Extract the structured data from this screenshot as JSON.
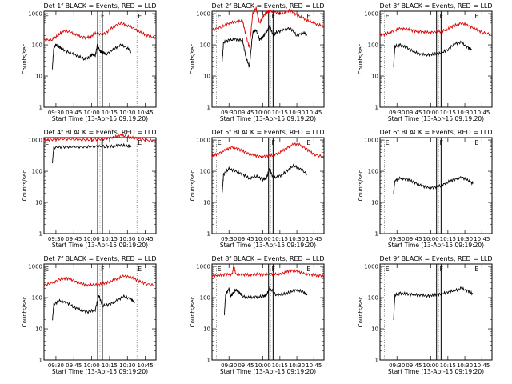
{
  "chart_data": [
    {
      "type": "line",
      "title": "Det 1f BLACK = Events, RED = LLD",
      "xlabel": "Start Time (13-Apr-15 09:19:20)",
      "ylabel": "Counts/sec",
      "ylog": true,
      "ylim": [
        1,
        1200
      ],
      "xlim": [
        9.333,
        10.9
      ],
      "xticks": [
        "09:30",
        "09:45",
        "10:00",
        "10:15",
        "10:30",
        "10:45"
      ],
      "markers": [
        {
          "label": "E",
          "time": "09:19"
        },
        {
          "label": "F",
          "time": "10:07"
        },
        {
          "label": "E",
          "time": "10:38"
        }
      ],
      "solid_lines": [
        "10:05",
        "10:09"
      ],
      "series": [
        {
          "color": "#dd0000",
          "x": [
            9.33,
            9.45,
            9.53,
            9.6,
            9.7,
            9.8,
            9.9,
            9.98,
            10.05,
            10.12,
            10.2,
            10.3,
            10.4,
            10.5,
            10.6,
            10.7,
            10.8,
            10.9
          ],
          "values": [
            140,
            150,
            200,
            280,
            260,
            200,
            170,
            180,
            230,
            220,
            240,
            380,
            500,
            420,
            330,
            240,
            190,
            160
          ]
        },
        {
          "color": "#000000",
          "x": [
            9.45,
            9.47,
            9.5,
            9.55,
            9.6,
            9.7,
            9.8,
            9.9,
            9.97,
            10.0,
            10.05,
            10.08,
            10.12,
            10.15,
            10.2,
            10.3,
            10.4,
            10.5,
            10.55
          ],
          "values": [
            18,
            80,
            100,
            85,
            70,
            55,
            45,
            35,
            40,
            50,
            45,
            100,
            60,
            60,
            50,
            70,
            100,
            80,
            60
          ]
        }
      ]
    },
    {
      "type": "line",
      "title": "Det 2f BLACK = Events, RED = LLD",
      "xlabel": "Start Time (13-Apr-15 09:19:20)",
      "ylabel": "Counts/sec",
      "ylog": true,
      "ylim": [
        1,
        1200
      ],
      "xlim": [
        9.25,
        10.9
      ],
      "xticks": [
        "09:30",
        "09:45",
        "10:00",
        "10:15",
        "10:30",
        "10:45"
      ],
      "markers": [
        {
          "label": "E",
          "time": "09:19"
        },
        {
          "label": "F",
          "time": "10:07"
        },
        {
          "label": "E",
          "time": "10:38"
        }
      ],
      "solid_lines": [
        "10:05",
        "10:09"
      ],
      "series": [
        {
          "color": "#dd0000",
          "x": [
            9.25,
            9.4,
            9.5,
            9.6,
            9.7,
            9.75,
            9.8,
            9.85,
            9.9,
            9.95,
            10.0,
            10.05,
            10.1,
            10.2,
            10.3,
            10.4,
            10.5,
            10.6,
            10.7,
            10.8,
            10.9
          ],
          "values": [
            300,
            380,
            500,
            550,
            600,
            200,
            80,
            1000,
            1500,
            500,
            800,
            1100,
            1200,
            1100,
            1000,
            1300,
            900,
            700,
            550,
            450,
            400
          ]
        },
        {
          "color": "#000000",
          "x": [
            9.4,
            9.42,
            9.5,
            9.6,
            9.7,
            9.75,
            9.8,
            9.85,
            9.9,
            9.95,
            10.0,
            10.05,
            10.1,
            10.15,
            10.2,
            10.3,
            10.4,
            10.5,
            10.6,
            10.65
          ],
          "values": [
            30,
            120,
            140,
            150,
            140,
            40,
            20,
            250,
            300,
            150,
            180,
            250,
            400,
            200,
            250,
            300,
            350,
            200,
            250,
            200
          ]
        }
      ]
    },
    {
      "type": "line",
      "title": "Det 3f BLACK = Events, RED = LLD",
      "xlabel": "Start Time (13-Apr-15 09:19:20)",
      "ylabel": "Counts/sec",
      "ylog": true,
      "ylim": [
        1,
        1200
      ],
      "xlim": [
        9.25,
        10.9
      ],
      "xticks": [
        "09:30",
        "09:45",
        "10:00",
        "10:15",
        "10:30",
        "10:45"
      ],
      "markers": [
        {
          "label": "E",
          "time": "09:19"
        },
        {
          "label": "F",
          "time": "10:07"
        },
        {
          "label": "E",
          "time": "10:38"
        }
      ],
      "solid_lines": [
        "10:05",
        "10:09"
      ],
      "series": [
        {
          "color": "#dd0000",
          "x": [
            9.25,
            9.35,
            9.45,
            9.55,
            9.65,
            9.75,
            9.85,
            9.95,
            10.05,
            10.15,
            10.25,
            10.35,
            10.45,
            10.55,
            10.65,
            10.75,
            10.9
          ],
          "values": [
            200,
            230,
            280,
            340,
            320,
            280,
            260,
            250,
            260,
            270,
            320,
            420,
            500,
            420,
            330,
            250,
            210
          ]
        },
        {
          "color": "#000000",
          "x": [
            9.45,
            9.47,
            9.55,
            9.65,
            9.75,
            9.85,
            9.95,
            10.05,
            10.15,
            10.25,
            10.35,
            10.45,
            10.55,
            10.6
          ],
          "values": [
            20,
            90,
            100,
            80,
            60,
            50,
            48,
            50,
            55,
            70,
            110,
            120,
            80,
            70
          ]
        }
      ]
    },
    {
      "type": "line",
      "title": "Det 4f BLACK = Events, RED = LLD",
      "xlabel": "Start Time (13-Apr-15 09:19:20)",
      "ylabel": "Counts/sec",
      "ylog": true,
      "ylim": [
        1,
        1200
      ],
      "xlim": [
        9.333,
        10.9
      ],
      "xticks": [
        "09:30",
        "09:45",
        "10:00",
        "10:15",
        "10:30",
        "10:45"
      ],
      "markers": [
        {
          "label": "E",
          "time": "09:19"
        },
        {
          "label": "F",
          "time": "10:07"
        },
        {
          "label": "E",
          "time": "10:38"
        }
      ],
      "solid_lines": [
        "10:05",
        "10:09"
      ],
      "series": [
        {
          "color": "#dd0000",
          "x": [
            9.33,
            9.45,
            9.6,
            9.75,
            9.9,
            10.05,
            10.2,
            10.3,
            10.4,
            10.5,
            10.6,
            10.75,
            10.9
          ],
          "values": [
            1000,
            1050,
            1100,
            1050,
            1000,
            1050,
            1100,
            1200,
            1450,
            1300,
            1150,
            1000,
            950
          ]
        },
        {
          "color": "#000000",
          "x": [
            9.45,
            9.47,
            9.6,
            9.75,
            9.9,
            10.05,
            10.2,
            10.3,
            10.4,
            10.5,
            10.55
          ],
          "values": [
            180,
            580,
            600,
            610,
            600,
            620,
            620,
            630,
            700,
            650,
            600
          ]
        }
      ]
    },
    {
      "type": "line",
      "title": "Det 5f BLACK = Events, RED = LLD",
      "xlabel": "Start Time (13-Apr-15 09:19:20)",
      "ylabel": "Counts/sec",
      "ylog": true,
      "ylim": [
        1,
        1200
      ],
      "xlim": [
        9.25,
        10.9
      ],
      "xticks": [
        "09:30",
        "09:45",
        "10:00",
        "10:15",
        "10:30",
        "10:45"
      ],
      "markers": [
        {
          "label": "E",
          "time": "09:19"
        },
        {
          "label": "F",
          "time": "10:07"
        },
        {
          "label": "E",
          "time": "10:38"
        }
      ],
      "solid_lines": [
        "10:05",
        "10:09"
      ],
      "series": [
        {
          "color": "#dd0000",
          "x": [
            9.25,
            9.35,
            9.45,
            9.55,
            9.65,
            9.75,
            9.85,
            9.95,
            10.05,
            10.15,
            10.25,
            10.35,
            10.45,
            10.55,
            10.65,
            10.75,
            10.9
          ],
          "values": [
            300,
            380,
            480,
            600,
            500,
            400,
            330,
            300,
            300,
            330,
            400,
            550,
            750,
            700,
            500,
            350,
            280
          ]
        },
        {
          "color": "#000000",
          "x": [
            9.4,
            9.42,
            9.5,
            9.6,
            9.7,
            9.8,
            9.9,
            10.0,
            10.05,
            10.1,
            10.15,
            10.25,
            10.35,
            10.45,
            10.55,
            10.65
          ],
          "values": [
            20,
            80,
            120,
            100,
            80,
            60,
            70,
            55,
            60,
            120,
            60,
            70,
            100,
            150,
            120,
            80
          ]
        }
      ]
    },
    {
      "type": "line",
      "title": "Det 6f BLACK = Events, RED = LLD",
      "xlabel": "Start Time (13-Apr-15 09:19:20)",
      "ylabel": "Counts/sec",
      "ylog": true,
      "ylim": [
        1,
        1200
      ],
      "xlim": [
        9.25,
        10.9
      ],
      "xticks": [
        "09:30",
        "09:45",
        "10:00",
        "10:15",
        "10:30",
        "10:45"
      ],
      "markers": [
        {
          "label": "E",
          "time": "09:19"
        },
        {
          "label": "F",
          "time": "10:07"
        },
        {
          "label": "E",
          "time": "10:38"
        }
      ],
      "solid_lines": [
        "10:05",
        "10:09"
      ],
      "series": [
        {
          "color": "#000000",
          "x": [
            9.45,
            9.47,
            9.55,
            9.65,
            9.75,
            9.85,
            9.95,
            10.05,
            10.15,
            10.25,
            10.35,
            10.45,
            10.55,
            10.62
          ],
          "values": [
            20,
            50,
            60,
            55,
            45,
            35,
            30,
            30,
            35,
            45,
            55,
            65,
            50,
            40
          ]
        }
      ]
    },
    {
      "type": "line",
      "title": "Det 7f BLACK = Events, RED = LLD",
      "xlabel": "Start Time (13-Apr-15 09:19:20)",
      "ylabel": "Counts/sec",
      "ylog": true,
      "ylim": [
        1,
        1200
      ],
      "xlim": [
        9.333,
        10.9
      ],
      "xticks": [
        "09:30",
        "09:45",
        "10:00",
        "10:15",
        "10:30",
        "10:45"
      ],
      "markers": [
        {
          "label": "E",
          "time": "09:19"
        },
        {
          "label": "F",
          "time": "10:07"
        },
        {
          "label": "E",
          "time": "10:38"
        }
      ],
      "solid_lines": [
        "10:05",
        "10:09"
      ],
      "series": [
        {
          "color": "#dd0000",
          "x": [
            9.33,
            9.45,
            9.55,
            9.65,
            9.75,
            9.85,
            9.95,
            10.05,
            10.15,
            10.25,
            10.35,
            10.45,
            10.55,
            10.65,
            10.75,
            10.9
          ],
          "values": [
            250,
            300,
            380,
            420,
            350,
            280,
            250,
            260,
            280,
            320,
            400,
            500,
            450,
            350,
            280,
            240
          ]
        },
        {
          "color": "#000000",
          "x": [
            9.45,
            9.47,
            9.55,
            9.65,
            9.75,
            9.85,
            9.95,
            10.05,
            10.1,
            10.15,
            10.25,
            10.35,
            10.45,
            10.55,
            10.6
          ],
          "values": [
            18,
            60,
            80,
            70,
            50,
            40,
            35,
            40,
            120,
            55,
            60,
            80,
            110,
            90,
            70
          ]
        }
      ]
    },
    {
      "type": "line",
      "title": "Det 8f BLACK = Events, RED = LLD",
      "xlabel": "Start Time (13-Apr-15 09:19:20)",
      "ylabel": "Counts/sec",
      "ylog": true,
      "ylim": [
        1,
        1200
      ],
      "xlim": [
        9.25,
        10.9
      ],
      "xticks": [
        "09:30",
        "09:45",
        "10:00",
        "10:15",
        "10:30",
        "10:45"
      ],
      "markers": [
        {
          "label": "E",
          "time": "09:19"
        },
        {
          "label": "F",
          "time": "10:07"
        },
        {
          "label": "E",
          "time": "10:38"
        }
      ],
      "solid_lines": [
        "10:05",
        "10:09"
      ],
      "series": [
        {
          "color": "#dd0000",
          "x": [
            9.25,
            9.35,
            9.45,
            9.55,
            9.57,
            9.6,
            9.7,
            9.8,
            9.9,
            10.0,
            10.1,
            10.2,
            10.3,
            10.4,
            10.5,
            10.6,
            10.7,
            10.8,
            10.9
          ],
          "values": [
            500,
            520,
            550,
            560,
            1100,
            560,
            550,
            540,
            560,
            550,
            580,
            560,
            600,
            750,
            700,
            600,
            550,
            520,
            500
          ]
        },
        {
          "color": "#000000",
          "x": [
            9.43,
            9.45,
            9.5,
            9.52,
            9.55,
            9.6,
            9.65,
            9.7,
            9.8,
            9.9,
            10.0,
            10.05,
            10.1,
            10.2,
            10.3,
            10.4,
            10.5,
            10.6,
            10.65
          ],
          "values": [
            25,
            120,
            200,
            110,
            130,
            180,
            150,
            110,
            100,
            105,
            110,
            120,
            200,
            120,
            130,
            150,
            180,
            150,
            120
          ]
        }
      ]
    },
    {
      "type": "line",
      "title": "Det 9f BLACK = Events, RED = LLD",
      "xlabel": "Start Time (13-Apr-15 09:19:20)",
      "ylabel": "Counts/sec",
      "ylog": true,
      "ylim": [
        1,
        1200
      ],
      "xlim": [
        9.25,
        10.9
      ],
      "xticks": [
        "09:30",
        "09:45",
        "10:00",
        "10:15",
        "10:30",
        "10:45"
      ],
      "markers": [
        {
          "label": "E",
          "time": "09:19"
        },
        {
          "label": "F",
          "time": "10:07"
        },
        {
          "label": "E",
          "time": "10:38"
        }
      ],
      "solid_lines": [
        "10:05",
        "10:09"
      ],
      "series": [
        {
          "color": "#000000",
          "x": [
            9.45,
            9.47,
            9.55,
            9.65,
            9.75,
            9.85,
            9.95,
            10.05,
            10.15,
            10.25,
            10.35,
            10.45,
            10.55,
            10.62
          ],
          "values": [
            20,
            120,
            140,
            130,
            125,
            120,
            115,
            120,
            130,
            150,
            170,
            200,
            160,
            130
          ]
        }
      ]
    }
  ]
}
